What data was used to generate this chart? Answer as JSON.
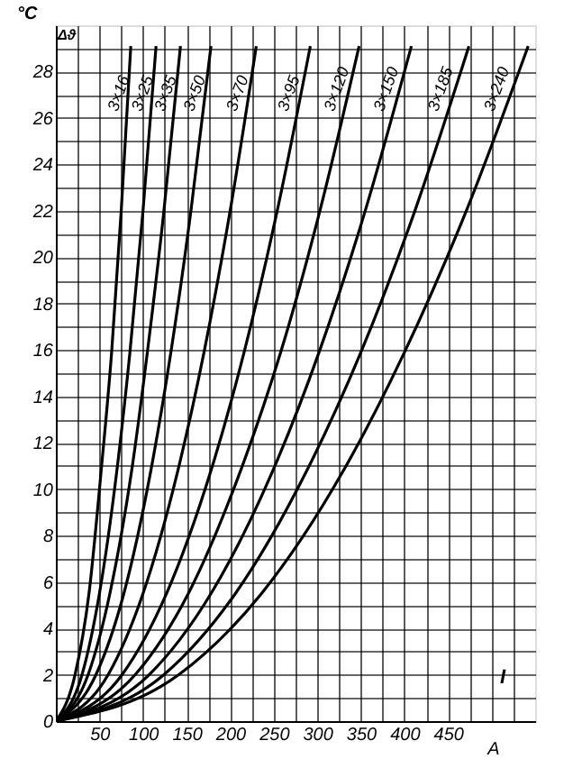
{
  "chart_data": {
    "type": "line",
    "xlabel": "A",
    "ylabel": "°C",
    "annotations": [
      "Δϑ",
      "I"
    ],
    "xlim": [
      0,
      550
    ],
    "ylim": [
      0,
      30
    ],
    "xticks": [
      {
        "value": 25,
        "label": null
      },
      50,
      {
        "value": 75,
        "label": null
      },
      100,
      {
        "value": 125,
        "label": null
      },
      150,
      {
        "value": 175,
        "label": null
      },
      200,
      {
        "value": 225,
        "label": null
      },
      250,
      {
        "value": 275,
        "label": null
      },
      300,
      {
        "value": 325,
        "label": null
      },
      350,
      {
        "value": 375,
        "label": null
      },
      400,
      {
        "value": 425,
        "label": null
      },
      450,
      {
        "value": 475,
        "label": null
      },
      {
        "value": 500,
        "label": null
      },
      {
        "value": 525,
        "label": null
      }
    ],
    "yticks": [
      0,
      {
        "value": 1,
        "label": null
      },
      2,
      {
        "value": 3,
        "label": null
      },
      4,
      {
        "value": 5,
        "label": null
      },
      6,
      {
        "value": 7,
        "label": null
      },
      8,
      {
        "value": 9,
        "label": null
      },
      10,
      {
        "value": 11,
        "label": null
      },
      12,
      {
        "value": 13,
        "label": null
      },
      14,
      {
        "value": 15,
        "label": null
      },
      16,
      {
        "value": 17,
        "label": null
      },
      18,
      {
        "value": 19,
        "label": null
      },
      20,
      {
        "value": 21,
        "label": null
      },
      22,
      {
        "value": 23,
        "label": null
      },
      24,
      {
        "value": 25,
        "label": null
      },
      26,
      {
        "value": 27,
        "label": null
      },
      28,
      {
        "value": 29,
        "label": null
      }
    ],
    "grid": true,
    "legend": false,
    "marker": "none",
    "line_style": "solid",
    "series": [
      {
        "name": "3×16",
        "color": "#000000",
        "x": [
          0,
          22,
          38,
          52,
          64,
          75,
          86
        ],
        "values": [
          0,
          2.0,
          5.5,
          10.8,
          15.9,
          22,
          29.1
        ]
      },
      {
        "name": "3×25",
        "color": "#000000",
        "x": [
          0,
          30,
          50,
          70,
          85,
          100,
          115
        ],
        "values": [
          0,
          2.0,
          5.5,
          10.8,
          15.9,
          22,
          29.1
        ]
      },
      {
        "name": "3×35",
        "color": "#000000",
        "x": [
          0,
          37,
          62,
          87,
          105,
          124,
          143
        ],
        "values": [
          0,
          2.0,
          5.5,
          10.8,
          15.9,
          22,
          29.1
        ]
      },
      {
        "name": "3×50",
        "color": "#000000",
        "x": [
          0,
          46,
          78,
          109,
          132,
          155,
          178
        ],
        "values": [
          0,
          2.0,
          5.5,
          10.8,
          15.9,
          22,
          29.1
        ]
      },
      {
        "name": "3×70",
        "color": "#000000",
        "x": [
          0,
          60,
          100,
          140,
          170,
          200,
          230
        ],
        "values": [
          0,
          2.0,
          5.5,
          10.8,
          15.9,
          22,
          29.1
        ]
      },
      {
        "name": "3×95",
        "color": "#000000",
        "x": [
          0,
          76,
          127,
          178,
          216,
          254,
          292
        ],
        "values": [
          0,
          2.0,
          5.5,
          10.8,
          15.9,
          22,
          29.1
        ]
      },
      {
        "name": "3×120",
        "color": "#000000",
        "x": [
          0,
          91,
          152,
          212,
          258,
          303,
          348
        ],
        "values": [
          0,
          2.0,
          5.5,
          10.8,
          15.9,
          22,
          29.1
        ]
      },
      {
        "name": "3×150",
        "color": "#000000",
        "x": [
          0,
          107,
          178,
          249,
          302,
          355,
          408
        ],
        "values": [
          0,
          2.0,
          5.5,
          10.8,
          15.9,
          22,
          29.1
        ]
      },
      {
        "name": "3×185",
        "color": "#000000",
        "x": [
          0,
          124,
          206,
          288,
          350,
          412,
          474
        ],
        "values": [
          0,
          2.0,
          5.5,
          10.8,
          15.9,
          22,
          29.1
        ]
      },
      {
        "name": "3×240",
        "color": "#000000",
        "x": [
          0,
          141,
          236,
          330,
          400,
          471,
          542
        ],
        "values": [
          0,
          2.0,
          5.5,
          10.8,
          15.9,
          22,
          29.1
        ]
      }
    ]
  }
}
